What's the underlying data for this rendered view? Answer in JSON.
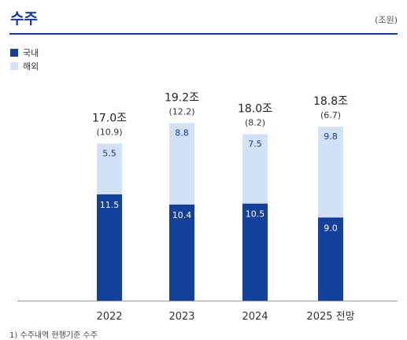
{
  "header": {
    "title": "수주",
    "unit": "(조원)"
  },
  "footnote": "1) 수주내역 현행기준 수주",
  "colors": {
    "domestic": "#15409a",
    "overseas": "#d3e1f6",
    "accent": "#1a3a8c",
    "axis": "#999999"
  },
  "chart_data": {
    "type": "bar",
    "stacked": true,
    "categories": [
      "2022",
      "2023",
      "2024",
      "2025 전망"
    ],
    "series": [
      {
        "name": "국내",
        "values": [
          11.5,
          10.4,
          10.5,
          9.0
        ]
      },
      {
        "name": "해외",
        "values": [
          5.5,
          8.8,
          7.5,
          9.8
        ]
      }
    ],
    "totals": [
      "17.0조",
      "19.2조",
      "18.0조",
      "18.8조"
    ],
    "subtotals": [
      "(10.9)",
      "(12.2)",
      "(8.2)",
      "(6.7)"
    ],
    "legend_position": "top-left",
    "grid": false
  }
}
